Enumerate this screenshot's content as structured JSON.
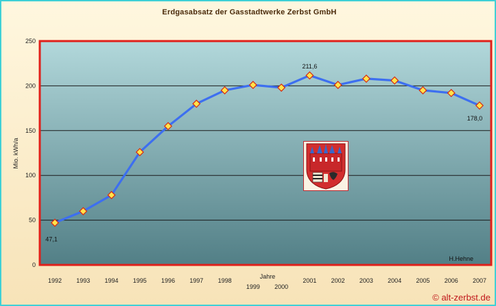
{
  "chart_data": {
    "type": "line",
    "title": "Erdgasabsatz der Gasstadtwerke Zerbst GmbH",
    "xlabel": "Jahre",
    "ylabel": "Mio. kWh/a",
    "ylim": [
      0,
      250
    ],
    "yticks": [
      "0",
      "50",
      "100",
      "150",
      "200",
      "250"
    ],
    "grid": true,
    "categories": [
      "1992",
      "1993",
      "1994",
      "1995",
      "1996",
      "1997",
      "1998",
      "1999",
      "2000",
      "2001",
      "2002",
      "2003",
      "2004",
      "2005",
      "2006",
      "2007"
    ],
    "series": [
      {
        "values": [
          47.1,
          60,
          78,
          126,
          155,
          180,
          195,
          201,
          198,
          211.6,
          201,
          208,
          206,
          195,
          192,
          178.0
        ],
        "color": "#3d6ff0",
        "marker_fill": "#ffe34a",
        "marker_stroke": "#d62a12"
      }
    ],
    "data_labels": [
      {
        "index": 0,
        "text": "47,1"
      },
      {
        "index": 9,
        "text": "211,6"
      },
      {
        "index": 15,
        "text": "178,0"
      }
    ],
    "annotation": "H.Hehne",
    "colors": {
      "plot_border": "#e0201a",
      "plot_top": "#b2d8db",
      "plot_bottom": "#527f86",
      "frame": "#3fd0d6"
    }
  },
  "footer": {
    "copyright": "© alt-zerbst.de"
  },
  "icons": {
    "coat_of_arms": "zerbst-coat-of-arms-icon"
  }
}
